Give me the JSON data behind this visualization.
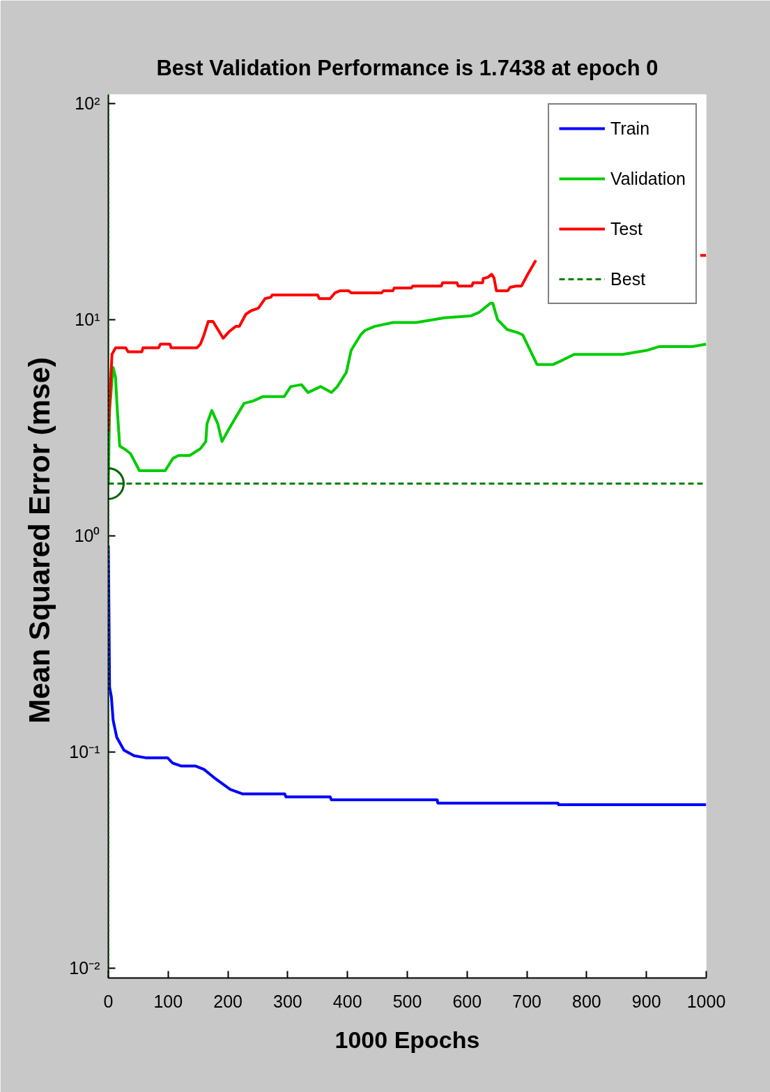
{
  "chart_data": {
    "type": "line",
    "title": "Best Validation Performance is 1.7438 at epoch 0",
    "xlabel": "1000 Epochs",
    "ylabel": "Mean Squared Error  (mse)",
    "xlim": [
      0,
      1000
    ],
    "ylim": [
      0.009,
      110
    ],
    "log": true,
    "legend": "top right",
    "xticks": [
      0,
      100,
      200,
      300,
      400,
      500,
      600,
      700,
      800,
      900,
      1000
    ],
    "yticks": [
      {
        "value": 0.01,
        "label": "10⁻²"
      },
      {
        "value": 0.1,
        "label": "10⁻¹"
      },
      {
        "value": 1,
        "label": "10⁰"
      },
      {
        "value": 10,
        "label": "10¹"
      },
      {
        "value": 100,
        "label": "10²"
      }
    ],
    "series": [
      {
        "name": "Train",
        "color": "#0000ff",
        "line_style": "solid",
        "x": [
          0,
          1,
          2,
          5,
          8,
          14,
          26,
          43,
          62,
          99,
          107,
          122,
          146,
          160,
          177,
          204,
          224,
          295,
          297,
          371,
          373,
          550,
          551,
          752,
          753,
          1000
        ],
        "values": [
          0.9,
          0.43,
          0.2,
          0.18,
          0.14,
          0.117,
          0.102,
          0.096,
          0.094,
          0.094,
          0.089,
          0.086,
          0.086,
          0.083,
          0.076,
          0.067,
          0.064,
          0.064,
          0.062,
          0.062,
          0.06,
          0.06,
          0.058,
          0.058,
          0.057,
          0.057
        ]
      },
      {
        "name": "Validation",
        "color": "#00cc00",
        "line_style": "solid",
        "x": [
          0,
          2,
          6,
          8,
          12,
          15,
          19,
          29,
          37,
          52,
          95,
          108,
          117,
          136,
          154,
          163,
          165,
          173,
          183,
          190,
          204,
          227,
          242,
          258,
          294,
          305,
          323,
          334,
          355,
          373,
          383,
          398,
          406,
          422,
          429,
          445,
          476,
          515,
          562,
          606,
          620,
          639,
          643,
          651,
          667,
          685,
          693,
          717,
          744,
          760,
          779,
          860,
          900,
          921,
          977,
          1000
        ],
        "values": [
          1.7438,
          3.8,
          5.2,
          6.0,
          5.4,
          3.8,
          2.6,
          2.5,
          2.4,
          2.0,
          2.0,
          2.28,
          2.35,
          2.35,
          2.53,
          2.73,
          3.3,
          3.8,
          3.3,
          2.73,
          3.2,
          4.1,
          4.2,
          4.4,
          4.4,
          4.9,
          5.0,
          4.6,
          4.9,
          4.6,
          4.9,
          5.7,
          7.2,
          8.5,
          8.9,
          9.3,
          9.7,
          9.7,
          10.2,
          10.4,
          10.8,
          11.9,
          11.9,
          10.0,
          9.0,
          8.7,
          8.5,
          6.2,
          6.2,
          6.5,
          6.9,
          6.9,
          7.2,
          7.5,
          7.5,
          7.7
        ]
      },
      {
        "name": "Test",
        "color": "#ff0000",
        "line_style": "solid",
        "x": [
          0,
          6,
          12,
          29,
          33,
          56,
          58,
          84,
          87,
          103,
          105,
          148,
          154,
          160,
          167,
          175,
          192,
          202,
          213,
          219,
          230,
          239,
          251,
          262,
          272,
          274,
          350,
          353,
          371,
          379,
          388,
          402,
          406,
          457,
          460,
          476,
          478,
          507,
          509,
          557,
          559,
          583,
          585,
          608,
          610,
          626,
          627,
          635,
          641,
          645,
          649,
          668,
          672,
          682,
          691,
          702,
          715,
          850,
          990,
          1000
        ],
        "values": [
          3.0,
          6.9,
          7.4,
          7.4,
          7.1,
          7.1,
          7.4,
          7.4,
          7.7,
          7.7,
          7.4,
          7.4,
          7.7,
          8.5,
          9.8,
          9.8,
          8.2,
          8.8,
          9.3,
          9.3,
          10.6,
          11.0,
          11.3,
          12.5,
          12.7,
          13.0,
          13.0,
          12.5,
          12.5,
          13.3,
          13.6,
          13.6,
          13.3,
          13.3,
          13.6,
          13.6,
          14.0,
          14.0,
          14.3,
          14.3,
          14.8,
          14.8,
          14.3,
          14.3,
          14.8,
          14.8,
          15.5,
          15.7,
          16.2,
          15.6,
          13.6,
          13.6,
          14.1,
          14.3,
          14.3,
          16.3,
          18.8,
          null,
          19.8,
          19.8
        ]
      },
      {
        "name": "Best",
        "color": "#008000",
        "line_style": "dashed",
        "x": [
          0,
          1000
        ],
        "values": [
          1.7438,
          1.7438
        ]
      },
      {
        "type": "scatter",
        "marker": "circle",
        "color": "#006400",
        "x": [
          0
        ],
        "values": [
          1.7438
        ]
      }
    ],
    "ref_lines": [
      {
        "axis": "x",
        "value": 0,
        "color": "#008000",
        "line_style": "dotted"
      }
    ]
  }
}
